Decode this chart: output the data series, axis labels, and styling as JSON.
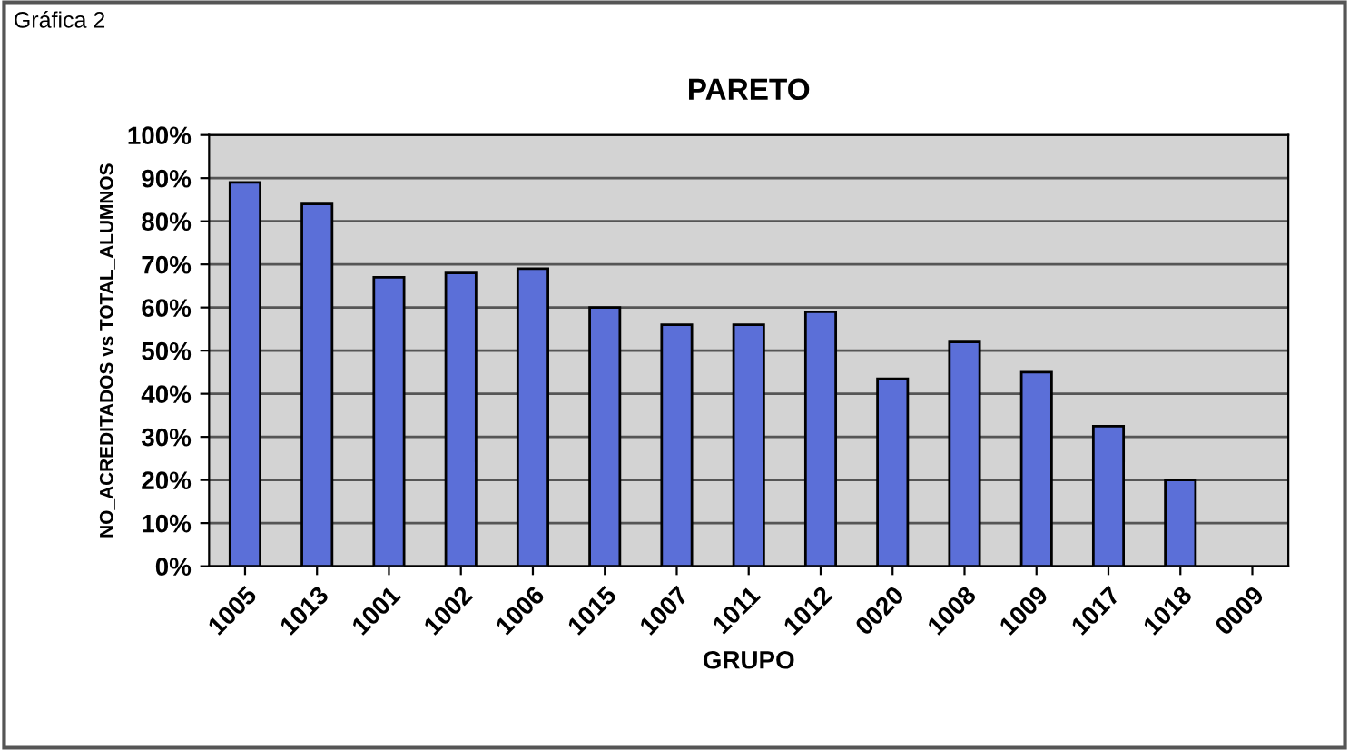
{
  "chart_data": {
    "type": "bar",
    "title": "PARETO",
    "xlabel": "GRUPO",
    "ylabel": "NO_ACREDITADOS vs TOTAL_ALUMNOS",
    "annotations": [
      "Gráfica 2"
    ],
    "categories": [
      "1005",
      "1013",
      "1001",
      "1002",
      "1006",
      "1015",
      "1007",
      "1011",
      "1012",
      "0020",
      "1008",
      "1009",
      "1017",
      "1018",
      "0009"
    ],
    "values": [
      0.89,
      0.84,
      0.67,
      0.68,
      0.69,
      0.6,
      0.56,
      0.56,
      0.59,
      0.435,
      0.52,
      0.45,
      0.325,
      0.2,
      null
    ],
    "color": "#5b6fd8",
    "ylim": [
      0,
      1
    ],
    "yticks": [
      {
        "value": 0,
        "label": "0%"
      },
      {
        "value": 0.1,
        "label": "10%"
      },
      {
        "value": 0.2,
        "label": "20%"
      },
      {
        "value": 0.3,
        "label": "30%"
      },
      {
        "value": 0.4,
        "label": "40%"
      },
      {
        "value": 0.5,
        "label": "50%"
      },
      {
        "value": 0.6,
        "label": "60%"
      },
      {
        "value": 0.7,
        "label": "70%"
      },
      {
        "value": 0.8,
        "label": "80%"
      },
      {
        "value": 0.9,
        "label": "90%"
      },
      {
        "value": 1,
        "label": "100%"
      }
    ],
    "grid": "y",
    "legend": false
  }
}
